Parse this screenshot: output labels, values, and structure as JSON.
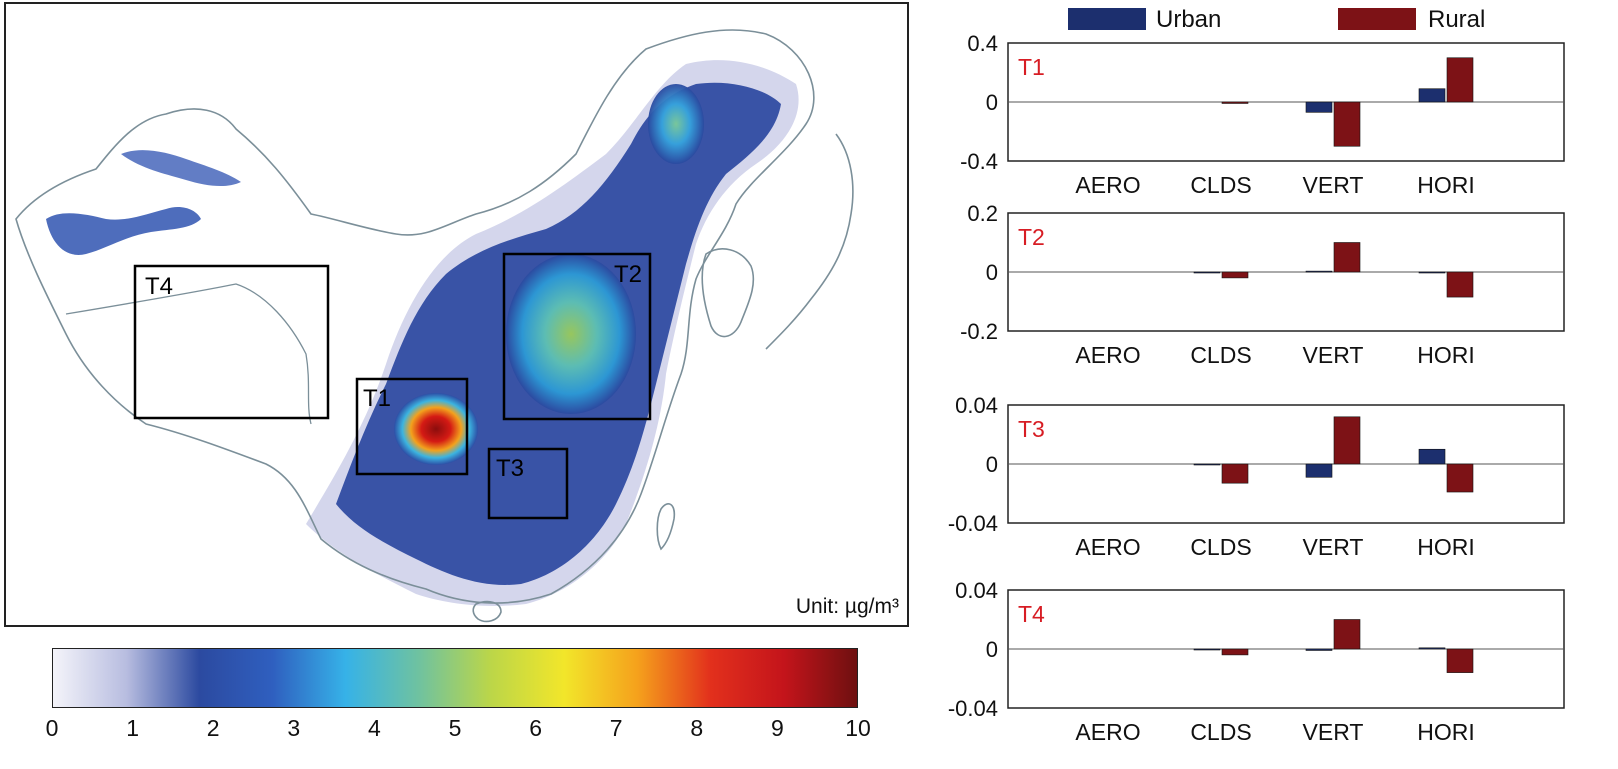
{
  "map": {
    "unit_label": "Unit: µg/m³",
    "boxes": [
      "T1",
      "T2",
      "T3",
      "T4"
    ]
  },
  "colorbar": {
    "ticks": [
      "0",
      "1",
      "2",
      "3",
      "4",
      "5",
      "6",
      "7",
      "8",
      "9",
      "10"
    ],
    "range": [
      0,
      10
    ]
  },
  "legend": {
    "urban_label": "Urban",
    "rural_label": "Rural",
    "urban_color": "#1c2f6e",
    "rural_color": "#7d1216"
  },
  "chart_data": [
    {
      "type": "bar",
      "panel_label": "T1",
      "categories": [
        "AERO",
        "CLDS",
        "VERT",
        "HORI"
      ],
      "series": [
        {
          "name": "Urban",
          "values": [
            0,
            0,
            -0.07,
            0.09
          ]
        },
        {
          "name": "Rural",
          "values": [
            0,
            -0.01,
            -0.3,
            0.3
          ]
        }
      ],
      "ylim": [
        -0.4,
        0.4
      ],
      "yticks": [
        "0.4",
        "0",
        "-0.4"
      ]
    },
    {
      "type": "bar",
      "panel_label": "T2",
      "categories": [
        "AERO",
        "CLDS",
        "VERT",
        "HORI"
      ],
      "series": [
        {
          "name": "Urban",
          "values": [
            0,
            -0.002,
            0.003,
            -0.003
          ]
        },
        {
          "name": "Rural",
          "values": [
            0,
            -0.02,
            0.1,
            -0.085
          ]
        }
      ],
      "ylim": [
        -0.2,
        0.2
      ],
      "yticks": [
        "0.2",
        "0",
        "-0.2"
      ]
    },
    {
      "type": "bar",
      "panel_label": "T3",
      "categories": [
        "AERO",
        "CLDS",
        "VERT",
        "HORI"
      ],
      "series": [
        {
          "name": "Urban",
          "values": [
            0,
            -0.0005,
            -0.009,
            0.01
          ]
        },
        {
          "name": "Rural",
          "values": [
            0,
            -0.013,
            0.032,
            -0.019
          ]
        }
      ],
      "ylim": [
        -0.04,
        0.04
      ],
      "yticks": [
        "0.04",
        "0",
        "-0.04"
      ]
    },
    {
      "type": "bar",
      "panel_label": "T4",
      "categories": [
        "AERO",
        "CLDS",
        "VERT",
        "HORI"
      ],
      "series": [
        {
          "name": "Urban",
          "values": [
            0,
            -0.0005,
            -0.001,
            0.0008
          ]
        },
        {
          "name": "Rural",
          "values": [
            0,
            -0.004,
            0.02,
            -0.016
          ]
        }
      ],
      "ylim": [
        -0.04,
        0.04
      ],
      "yticks": [
        "0.04",
        "0",
        "-0.04"
      ]
    }
  ]
}
